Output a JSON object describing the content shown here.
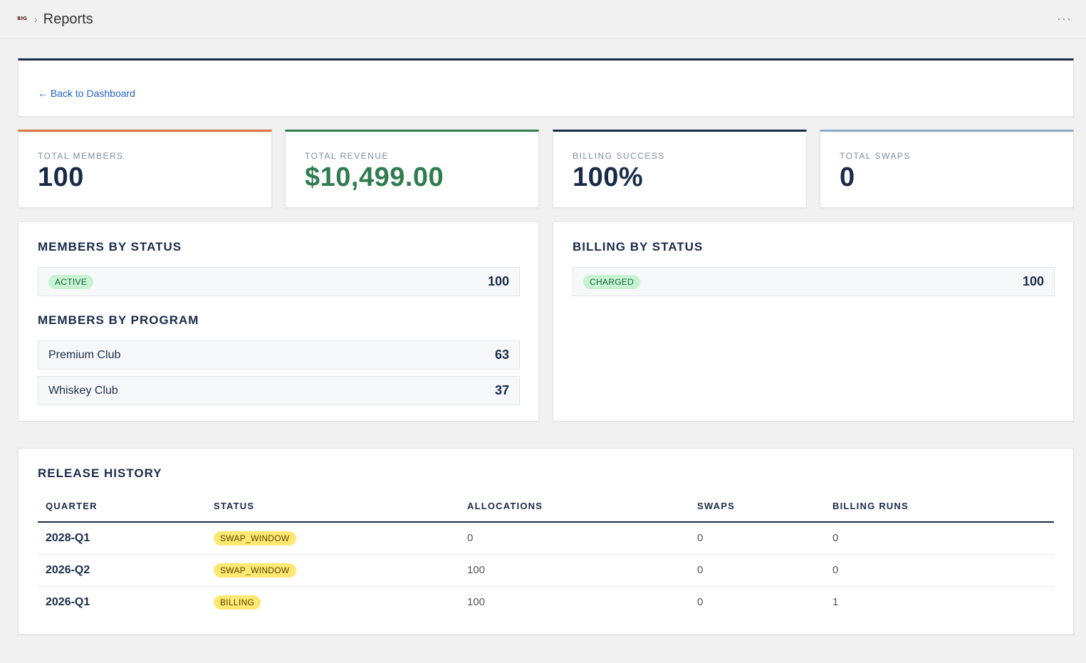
{
  "header": {
    "logo_text": "BIG",
    "title": "Reports",
    "more_label": "···"
  },
  "back": {
    "label": "← Back to Dashboard"
  },
  "stats": [
    {
      "label": "TOTAL MEMBERS",
      "value": "100",
      "accent": "#d9743a",
      "value_color": "#1a2b4a"
    },
    {
      "label": "TOTAL REVENUE",
      "value": "$10,499.00",
      "accent": "#2f7d4e",
      "value_color": "#2f7d4e"
    },
    {
      "label": "BILLING SUCCESS",
      "value": "100%",
      "accent": "#1a2b4a",
      "value_color": "#1a2b4a"
    },
    {
      "label": "TOTAL SWAPS",
      "value": "0",
      "accent": "#8aa8c8",
      "value_color": "#1a2b4a"
    }
  ],
  "members_by_status": {
    "title": "MEMBERS BY STATUS",
    "rows": [
      {
        "status": "ACTIVE",
        "count": "100"
      }
    ]
  },
  "members_by_program": {
    "title": "MEMBERS BY PROGRAM",
    "rows": [
      {
        "name": "Premium Club",
        "count": "63"
      },
      {
        "name": "Whiskey Club",
        "count": "37"
      }
    ]
  },
  "billing_by_status": {
    "title": "BILLING BY STATUS",
    "rows": [
      {
        "status": "CHARGED",
        "count": "100"
      }
    ]
  },
  "release_history": {
    "title": "RELEASE HISTORY",
    "columns": [
      "QUARTER",
      "STATUS",
      "ALLOCATIONS",
      "SWAPS",
      "BILLING RUNS"
    ],
    "rows": [
      {
        "quarter": "2028-Q1",
        "status": "SWAP_WINDOW",
        "allocations": "0",
        "swaps": "0",
        "billing_runs": "0"
      },
      {
        "quarter": "2026-Q2",
        "status": "SWAP_WINDOW",
        "allocations": "100",
        "swaps": "0",
        "billing_runs": "0"
      },
      {
        "quarter": "2026-Q1",
        "status": "BILLING",
        "allocations": "100",
        "swaps": "0",
        "billing_runs": "1"
      }
    ]
  }
}
